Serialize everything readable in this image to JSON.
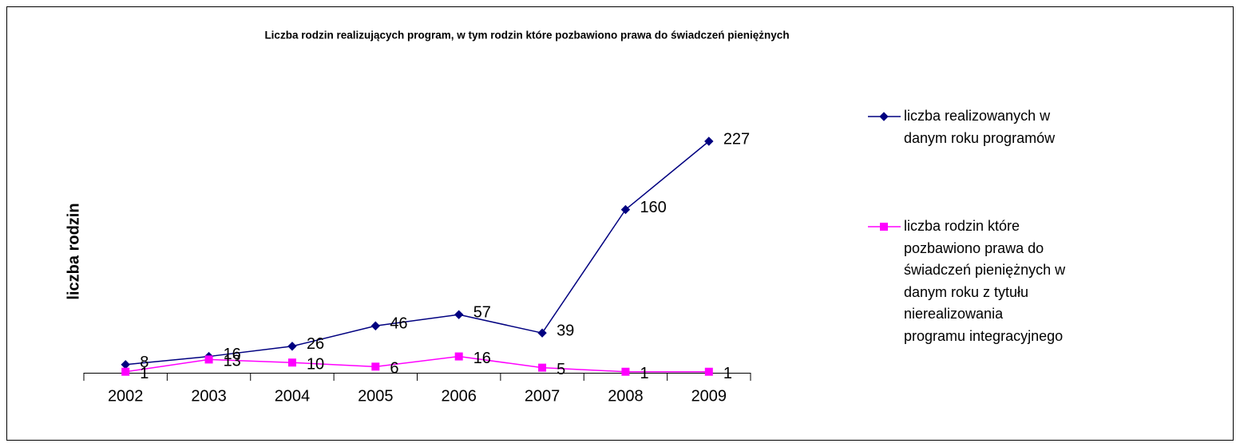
{
  "chart_data": {
    "type": "line",
    "title": "Liczba rodzin realizujących program, w tym rodzin które pozbawiono prawa do świadczeń pieniężnych",
    "y_label": "liczba rodzin",
    "categories": [
      "2002",
      "2003",
      "2004",
      "2005",
      "2006",
      "2007",
      "2008",
      "2009"
    ],
    "series": [
      {
        "name": "liczba realizowanych w danym roku programów",
        "color": "#000080",
        "marker": "diamond",
        "values": [
          8,
          16,
          26,
          46,
          57,
          39,
          160,
          227
        ]
      },
      {
        "name": "liczba rodzin które pozbawiono prawa do świadczeń pieniężnych w danym roku z tytułu nierealizowania programu integracyjnego",
        "color": "#ff00ff",
        "marker": "square",
        "values": [
          1,
          13,
          10,
          6,
          16,
          5,
          1,
          1
        ]
      }
    ],
    "legend": "right",
    "grid": false
  }
}
